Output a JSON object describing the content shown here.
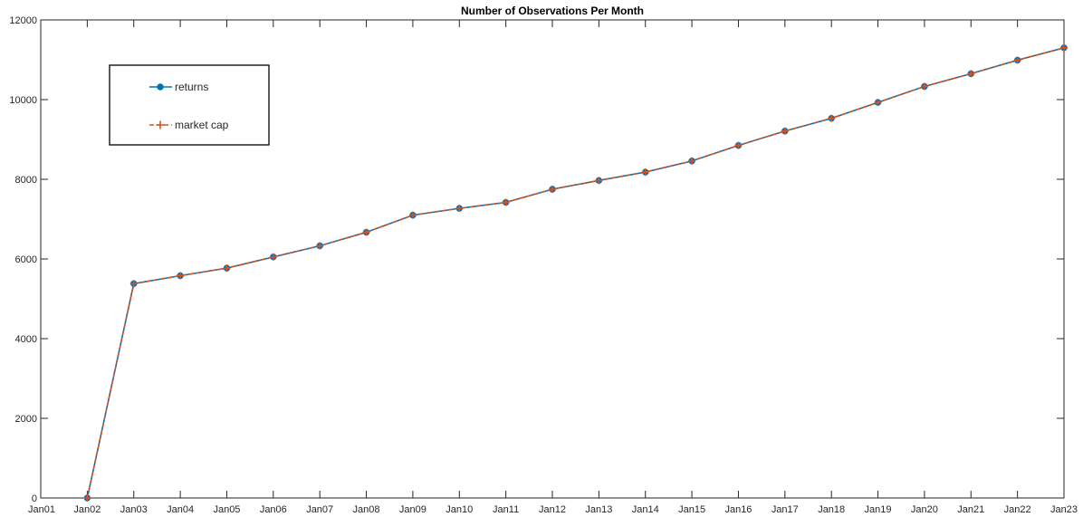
{
  "chart_data": {
    "type": "line",
    "title": "Number of Observations Per Month",
    "xlabel": "",
    "ylabel": "",
    "x_categories": [
      "Jan01",
      "Jan02",
      "Jan03",
      "Jan04",
      "Jan05",
      "Jan06",
      "Jan07",
      "Jan08",
      "Jan09",
      "Jan10",
      "Jan11",
      "Jan12",
      "Jan13",
      "Jan14",
      "Jan15",
      "Jan16",
      "Jan17",
      "Jan18",
      "Jan19",
      "Jan20",
      "Jan21",
      "Jan22",
      "Jan23"
    ],
    "ylim": [
      0,
      12000
    ],
    "yticks": [
      0,
      2000,
      4000,
      6000,
      8000,
      10000,
      12000
    ],
    "grid": false,
    "legend_position": "top-left",
    "series": [
      {
        "name": "returns",
        "color": "#0072BD",
        "style": "solid-circle",
        "x": [
          "Jan02",
          "Jan03",
          "Jan04",
          "Jan05",
          "Jan06",
          "Jan07",
          "Jan08",
          "Jan09",
          "Jan10",
          "Jan11",
          "Jan12",
          "Jan13",
          "Jan14",
          "Jan15",
          "Jan16",
          "Jan17",
          "Jan18",
          "Jan19",
          "Jan20",
          "Jan21",
          "Jan22",
          "Jan23"
        ],
        "values": [
          0,
          5380,
          5580,
          5770,
          6050,
          6330,
          6670,
          7100,
          7270,
          7420,
          7750,
          7970,
          8180,
          8460,
          8850,
          9210,
          9530,
          9930,
          10330,
          10650,
          10990,
          11300
        ]
      },
      {
        "name": "market cap",
        "color": "#D95319",
        "style": "dashed-plus",
        "x": [
          "Jan02",
          "Jan03",
          "Jan04",
          "Jan05",
          "Jan06",
          "Jan07",
          "Jan08",
          "Jan09",
          "Jan10",
          "Jan11",
          "Jan12",
          "Jan13",
          "Jan14",
          "Jan15",
          "Jan16",
          "Jan17",
          "Jan18",
          "Jan19",
          "Jan20",
          "Jan21",
          "Jan22",
          "Jan23"
        ],
        "values": [
          0,
          5380,
          5580,
          5770,
          6050,
          6330,
          6670,
          7100,
          7270,
          7420,
          7750,
          7970,
          8180,
          8460,
          8850,
          9210,
          9530,
          9930,
          10330,
          10650,
          10990,
          11300
        ]
      }
    ]
  }
}
